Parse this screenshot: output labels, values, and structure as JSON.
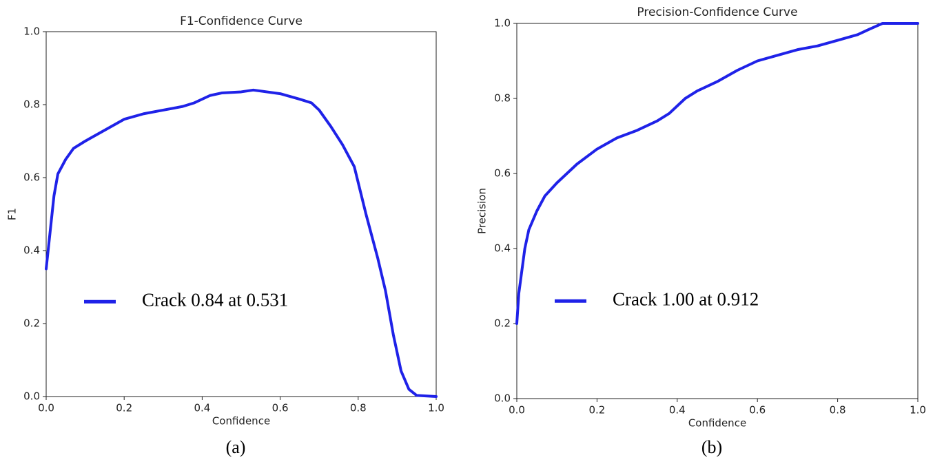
{
  "chart_data": [
    {
      "type": "line",
      "title": "F1-Confidence Curve",
      "x_label": "Confidence",
      "y_label": "F1",
      "caption": "(a)",
      "x": [
        0,
        0.01,
        0.02,
        0.03,
        0.05,
        0.07,
        0.1,
        0.15,
        0.2,
        0.25,
        0.3,
        0.35,
        0.38,
        0.42,
        0.45,
        0.5,
        0.531,
        0.6,
        0.65,
        0.68,
        0.7,
        0.73,
        0.76,
        0.79,
        0.82,
        0.85,
        0.87,
        0.89,
        0.91,
        0.93,
        0.95,
        1.0
      ],
      "series": [
        {
          "name": "Crack 0.84 at 0.531",
          "color": "#1f22e8",
          "values": [
            0.35,
            0.45,
            0.55,
            0.61,
            0.65,
            0.68,
            0.7,
            0.73,
            0.76,
            0.775,
            0.785,
            0.795,
            0.805,
            0.825,
            0.832,
            0.835,
            0.84,
            0.83,
            0.815,
            0.805,
            0.785,
            0.74,
            0.69,
            0.63,
            0.5,
            0.38,
            0.29,
            0.17,
            0.07,
            0.02,
            0.003,
            0
          ]
        }
      ],
      "xlim": [
        0,
        1
      ],
      "ylim": [
        0,
        1
      ],
      "xticks": [
        {
          "value": 0,
          "label": "0.0"
        },
        0.2,
        0.4,
        0.6,
        0.8,
        {
          "value": 1,
          "label": "1.0"
        }
      ],
      "yticks": [
        {
          "value": 0,
          "label": "0.0"
        },
        0.2,
        0.4,
        0.6,
        0.8,
        {
          "value": 1,
          "label": "1.0"
        }
      ],
      "legend": "center left"
    },
    {
      "type": "line",
      "title": "Precision-Confidence Curve",
      "x_label": "Confidence",
      "y_label": "Precision",
      "caption": "(b)",
      "x": [
        0,
        0.005,
        0.02,
        0.03,
        0.05,
        0.07,
        0.1,
        0.15,
        0.2,
        0.25,
        0.3,
        0.35,
        0.38,
        0.42,
        0.45,
        0.5,
        0.55,
        0.6,
        0.65,
        0.7,
        0.75,
        0.8,
        0.85,
        0.88,
        0.912,
        1.0
      ],
      "series": [
        {
          "name": "Crack 1.00 at 0.912",
          "color": "#1f22e8",
          "values": [
            0.2,
            0.28,
            0.4,
            0.45,
            0.5,
            0.54,
            0.575,
            0.625,
            0.665,
            0.695,
            0.715,
            0.74,
            0.76,
            0.8,
            0.82,
            0.845,
            0.875,
            0.9,
            0.915,
            0.93,
            0.94,
            0.955,
            0.97,
            0.985,
            1.0,
            1.0
          ]
        }
      ],
      "xlim": [
        0,
        1
      ],
      "ylim": [
        0,
        1
      ],
      "xticks": [
        {
          "value": 0,
          "label": "0.0"
        },
        0.2,
        0.4,
        0.6,
        0.8,
        {
          "value": 1,
          "label": "1.0"
        }
      ],
      "yticks": [
        {
          "value": 0,
          "label": "0.0"
        },
        0.2,
        0.4,
        0.6,
        0.8,
        {
          "value": 1,
          "label": "1.0"
        }
      ],
      "legend": "center left"
    }
  ]
}
